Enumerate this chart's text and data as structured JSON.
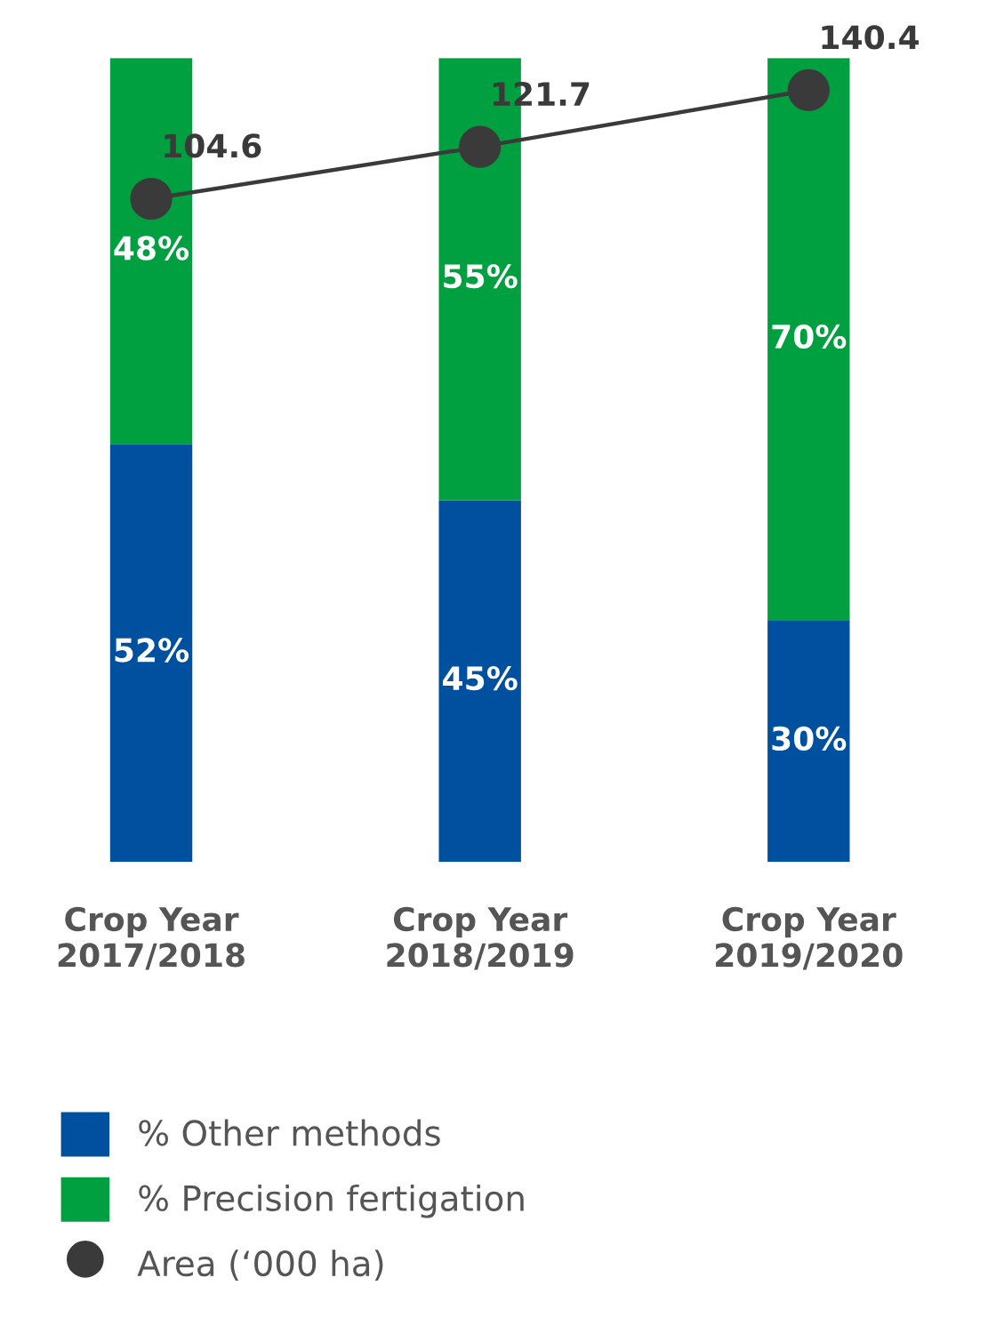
{
  "chart_data": {
    "type": "bar",
    "stacked": true,
    "categories": [
      "Crop Year\n2017/2018",
      "Crop Year\n2018/2019",
      "Crop Year\n2019/2020"
    ],
    "ylim": [
      0,
      100
    ],
    "tick_labels": "x",
    "y2lim": [
      -114,
      151
    ],
    "legend": "bottom",
    "grid": false,
    "series": [
      {
        "name": "% Other methods",
        "color": "#0050a0",
        "values": [
          52,
          45,
          30
        ],
        "value_labels": [
          "52%",
          "45%",
          "30%"
        ]
      },
      {
        "name": "% Precision fertigation",
        "color": "#00a040",
        "values": [
          48,
          55,
          70
        ],
        "value_labels": [
          "48%",
          "55%",
          "70%"
        ]
      },
      {
        "name": "Area (‘000 ha)",
        "type": "line",
        "axis": "y2",
        "color": "#3a3a3a",
        "marker": "circle",
        "values": [
          104.6,
          121.7,
          140.4
        ],
        "value_labels": [
          "104.6",
          "121.7",
          "140.4"
        ]
      }
    ]
  }
}
